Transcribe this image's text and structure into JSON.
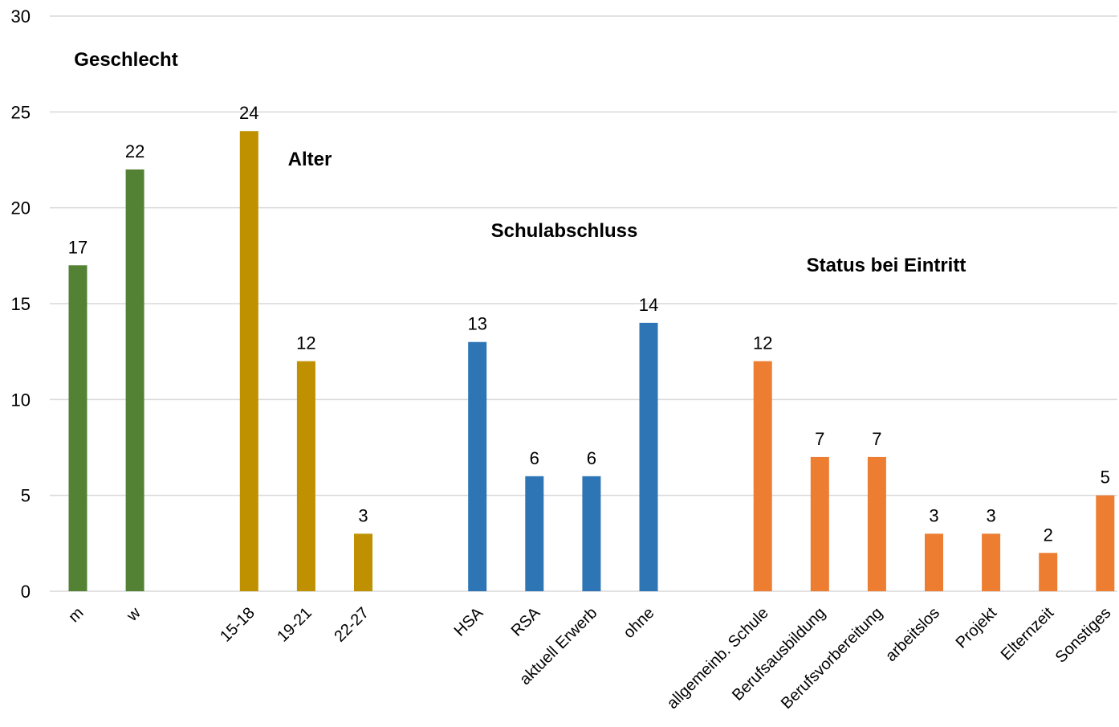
{
  "chart_data": {
    "type": "bar",
    "ylim": [
      0,
      30
    ],
    "yticks": [
      0,
      5,
      10,
      15,
      20,
      25,
      30
    ],
    "grid": true,
    "groups": [
      {
        "name": "Geschlecht",
        "color": "#548235",
        "categories": [
          "m",
          "w"
        ],
        "values": [
          17,
          22
        ]
      },
      {
        "name": "Alter",
        "color": "#BF9000",
        "categories": [
          "15-18",
          "19-21",
          "22-27"
        ],
        "values": [
          24,
          12,
          3
        ]
      },
      {
        "name": "Schulabschluss",
        "color": "#2E75B6",
        "categories": [
          "HSA",
          "RSA",
          "aktuell Erwerb",
          "ohne"
        ],
        "values": [
          13,
          6,
          6,
          14
        ]
      },
      {
        "name": "Status bei Eintritt",
        "color": "#ED7D31",
        "categories": [
          "allgemeinb. Schule",
          "Berufsausbildung",
          "Berufsvorbereitung",
          "arbeitslos",
          "Projekt",
          "Elternzeit",
          "Sonstiges"
        ],
        "values": [
          12,
          7,
          7,
          3,
          3,
          2,
          5
        ]
      }
    ]
  }
}
